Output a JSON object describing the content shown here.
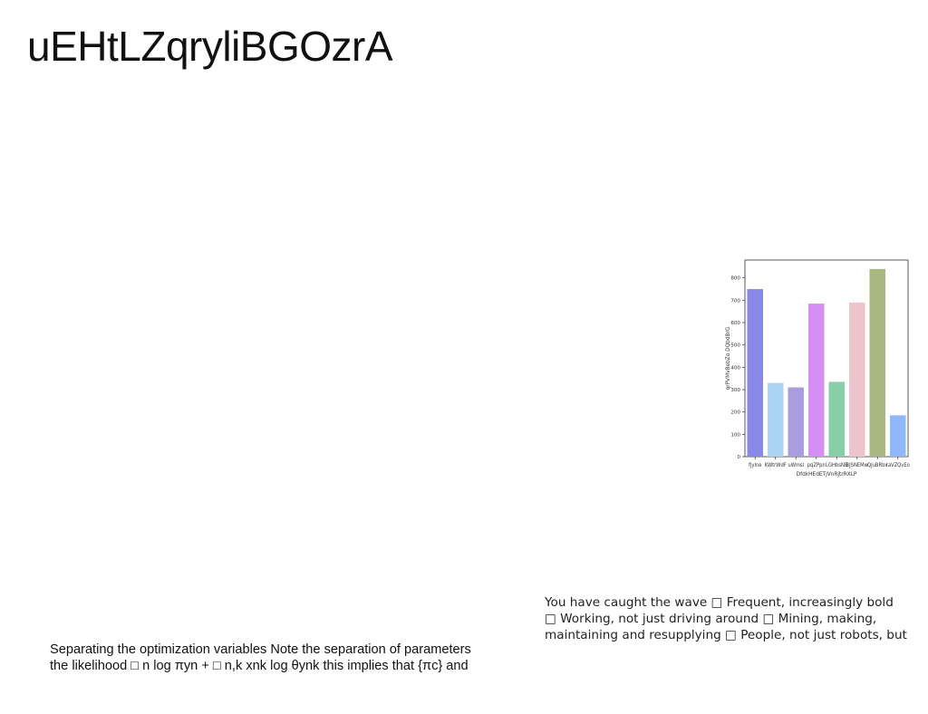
{
  "title": "uEHtLZqryliBGOzrA",
  "right_text": {
    "lines": [
      "You have caught the wave □ Frequent, increasingly bold",
      "□ Working, not just driving around □ Mining, making,",
      "maintaining and resupplying □ People, not just robots, but"
    ]
  },
  "bottom_text": {
    "lines": [
      "Separating the optimization variables Note the separation of parameters",
      "the likelihood □ n log πyn + □ n,k xnk log θynk this implies that {πc} and"
    ]
  },
  "chart_data": {
    "type": "bar",
    "title": "",
    "xlabel": "DfdkHEdETjVnRjtrRXLP",
    "ylabel": "qrPVMvBebZo DQbdBrG",
    "categories": [
      "fjylne",
      "KWtrWdF",
      "uWmsl",
      "pqZPpn",
      "LGHbsNB",
      "BJSNEMw",
      "QJuBRbx",
      "raVZQvEo"
    ],
    "values": [
      750,
      330,
      310,
      685,
      335,
      690,
      840,
      185
    ],
    "colors": [
      "#8888e6",
      "#aad4f2",
      "#a99de0",
      "#d48ff2",
      "#88cfa8",
      "#ecc4cc",
      "#a8b880",
      "#90b8f8"
    ],
    "ylim": [
      0,
      880
    ],
    "yticks": [
      "0",
      "100",
      "200",
      "300",
      "400",
      "500",
      "600",
      "700",
      "800"
    ],
    "grid": false,
    "legend": "none"
  }
}
